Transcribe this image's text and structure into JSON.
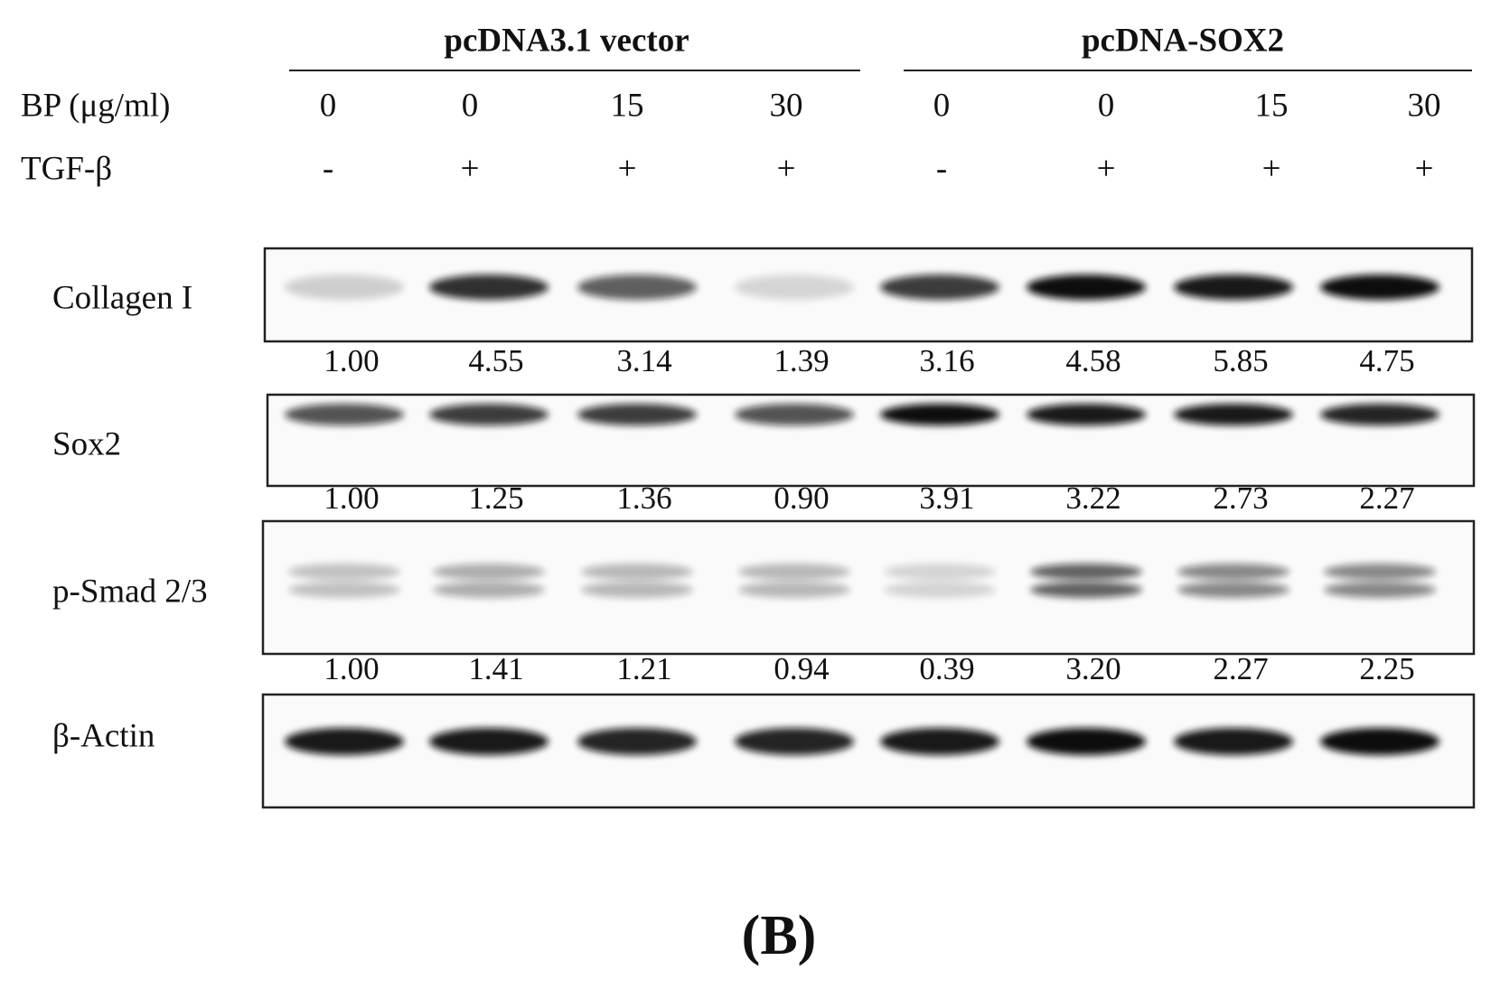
{
  "groups": [
    {
      "label": "pcDNA3.1 vector"
    },
    {
      "label": "pcDNA-SOX2"
    }
  ],
  "conditions": {
    "bp": {
      "label": "BP (μg/ml)",
      "values": [
        "0",
        "0",
        "15",
        "30",
        "0",
        "0",
        "15",
        "30"
      ]
    },
    "tgf": {
      "label": "TGF-β",
      "values": [
        "-",
        "+",
        "+",
        "+",
        "-",
        "+",
        "+",
        "+"
      ]
    }
  },
  "blots": [
    {
      "label": "Collagen I",
      "quantification": [
        "1.00",
        "4.55",
        "3.14",
        "1.39",
        "3.16",
        "4.58",
        "5.85",
        "4.75"
      ]
    },
    {
      "label": "Sox2",
      "quantification": [
        "1.00",
        "1.25",
        "1.36",
        "0.90",
        "3.91",
        "3.22",
        "2.73",
        "2.27"
      ]
    },
    {
      "label": "p-Smad 2/3",
      "quantification": [
        "1.00",
        "1.41",
        "1.21",
        "0.94",
        "0.39",
        "3.20",
        "2.27",
        "2.25"
      ]
    },
    {
      "label": "β-Actin"
    }
  ],
  "panel_label": "(B)"
}
